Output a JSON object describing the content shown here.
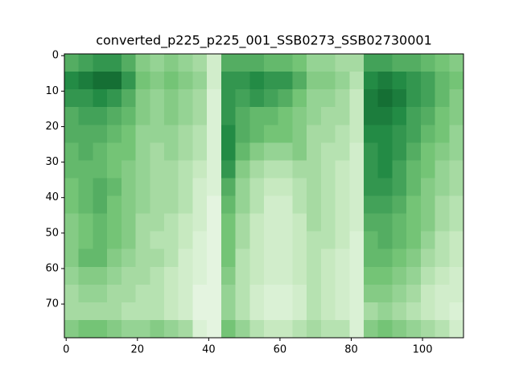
{
  "chart_data": {
    "type": "heatmap",
    "title": "converted_p225_p225_001_SSB0273_SSB02730001",
    "colormap": "Greens",
    "xlim": [
      -0.5,
      111.5
    ],
    "ylim": [
      79.5,
      -0.5
    ],
    "xticks": [
      0,
      20,
      40,
      60,
      80,
      100
    ],
    "yticks": [
      0,
      10,
      20,
      30,
      40,
      50,
      60,
      70
    ],
    "z": [
      [
        0.6,
        0.65,
        0.7,
        0.7,
        0.6,
        0.45,
        0.4,
        0.45,
        0.4,
        0.35,
        0.2,
        0.6,
        0.6,
        0.6,
        0.55,
        0.55,
        0.5,
        0.4,
        0.4,
        0.35,
        0.35,
        0.65,
        0.65,
        0.6,
        0.6,
        0.55,
        0.5,
        0.45
      ],
      [
        0.75,
        0.8,
        0.85,
        0.85,
        0.7,
        0.5,
        0.45,
        0.5,
        0.45,
        0.4,
        0.2,
        0.7,
        0.7,
        0.75,
        0.7,
        0.7,
        0.6,
        0.45,
        0.45,
        0.4,
        0.3,
        0.75,
        0.8,
        0.75,
        0.7,
        0.65,
        0.55,
        0.5
      ],
      [
        0.7,
        0.7,
        0.75,
        0.7,
        0.6,
        0.45,
        0.4,
        0.45,
        0.4,
        0.35,
        0.15,
        0.7,
        0.65,
        0.7,
        0.65,
        0.6,
        0.5,
        0.4,
        0.4,
        0.35,
        0.25,
        0.8,
        0.85,
        0.8,
        0.7,
        0.65,
        0.55,
        0.45
      ],
      [
        0.6,
        0.65,
        0.65,
        0.6,
        0.55,
        0.45,
        0.4,
        0.45,
        0.4,
        0.35,
        0.15,
        0.7,
        0.6,
        0.55,
        0.55,
        0.5,
        0.45,
        0.4,
        0.35,
        0.35,
        0.25,
        0.8,
        0.8,
        0.75,
        0.65,
        0.6,
        0.5,
        0.45
      ],
      [
        0.6,
        0.6,
        0.6,
        0.55,
        0.5,
        0.4,
        0.4,
        0.4,
        0.35,
        0.3,
        0.15,
        0.75,
        0.6,
        0.55,
        0.5,
        0.5,
        0.45,
        0.35,
        0.35,
        0.3,
        0.25,
        0.75,
        0.75,
        0.7,
        0.65,
        0.55,
        0.5,
        0.4
      ],
      [
        0.55,
        0.6,
        0.55,
        0.5,
        0.5,
        0.4,
        0.35,
        0.4,
        0.35,
        0.3,
        0.15,
        0.75,
        0.55,
        0.45,
        0.4,
        0.4,
        0.45,
        0.35,
        0.3,
        0.3,
        0.2,
        0.7,
        0.75,
        0.7,
        0.6,
        0.5,
        0.45,
        0.4
      ],
      [
        0.55,
        0.55,
        0.55,
        0.5,
        0.45,
        0.4,
        0.35,
        0.35,
        0.3,
        0.25,
        0.15,
        0.7,
        0.45,
        0.35,
        0.3,
        0.3,
        0.35,
        0.35,
        0.3,
        0.25,
        0.2,
        0.7,
        0.75,
        0.65,
        0.55,
        0.5,
        0.4,
        0.35
      ],
      [
        0.5,
        0.55,
        0.6,
        0.55,
        0.45,
        0.4,
        0.35,
        0.35,
        0.3,
        0.2,
        0.15,
        0.6,
        0.4,
        0.3,
        0.25,
        0.25,
        0.3,
        0.35,
        0.3,
        0.25,
        0.2,
        0.7,
        0.7,
        0.65,
        0.55,
        0.45,
        0.4,
        0.35
      ],
      [
        0.5,
        0.55,
        0.6,
        0.5,
        0.45,
        0.4,
        0.35,
        0.35,
        0.3,
        0.2,
        0.1,
        0.55,
        0.4,
        0.3,
        0.2,
        0.2,
        0.3,
        0.35,
        0.3,
        0.25,
        0.2,
        0.65,
        0.65,
        0.6,
        0.5,
        0.45,
        0.35,
        0.3
      ],
      [
        0.45,
        0.5,
        0.55,
        0.5,
        0.45,
        0.35,
        0.35,
        0.3,
        0.25,
        0.2,
        0.1,
        0.5,
        0.35,
        0.25,
        0.2,
        0.2,
        0.25,
        0.35,
        0.3,
        0.25,
        0.2,
        0.6,
        0.6,
        0.55,
        0.5,
        0.45,
        0.35,
        0.3
      ],
      [
        0.45,
        0.5,
        0.55,
        0.5,
        0.45,
        0.35,
        0.3,
        0.3,
        0.25,
        0.15,
        0.1,
        0.5,
        0.35,
        0.25,
        0.2,
        0.2,
        0.25,
        0.3,
        0.3,
        0.25,
        0.15,
        0.55,
        0.6,
        0.55,
        0.5,
        0.4,
        0.3,
        0.25
      ],
      [
        0.45,
        0.55,
        0.55,
        0.45,
        0.4,
        0.35,
        0.35,
        0.3,
        0.2,
        0.15,
        0.1,
        0.5,
        0.3,
        0.25,
        0.2,
        0.2,
        0.25,
        0.3,
        0.25,
        0.2,
        0.15,
        0.55,
        0.55,
        0.5,
        0.45,
        0.35,
        0.3,
        0.25
      ],
      [
        0.4,
        0.45,
        0.45,
        0.4,
        0.35,
        0.35,
        0.3,
        0.25,
        0.2,
        0.15,
        0.1,
        0.45,
        0.3,
        0.25,
        0.2,
        0.2,
        0.25,
        0.3,
        0.25,
        0.2,
        0.15,
        0.5,
        0.5,
        0.45,
        0.4,
        0.3,
        0.25,
        0.2
      ],
      [
        0.35,
        0.4,
        0.4,
        0.35,
        0.35,
        0.3,
        0.3,
        0.25,
        0.2,
        0.1,
        0.1,
        0.4,
        0.3,
        0.2,
        0.15,
        0.15,
        0.2,
        0.3,
        0.25,
        0.2,
        0.15,
        0.45,
        0.45,
        0.4,
        0.35,
        0.25,
        0.2,
        0.2
      ],
      [
        0.35,
        0.35,
        0.35,
        0.35,
        0.3,
        0.3,
        0.3,
        0.25,
        0.2,
        0.1,
        0.1,
        0.4,
        0.3,
        0.2,
        0.15,
        0.15,
        0.2,
        0.3,
        0.25,
        0.2,
        0.15,
        0.35,
        0.4,
        0.35,
        0.3,
        0.25,
        0.2,
        0.15
      ],
      [
        0.45,
        0.5,
        0.5,
        0.45,
        0.4,
        0.4,
        0.45,
        0.4,
        0.35,
        0.15,
        0.1,
        0.5,
        0.4,
        0.3,
        0.25,
        0.25,
        0.3,
        0.35,
        0.3,
        0.3,
        0.15,
        0.45,
        0.5,
        0.45,
        0.4,
        0.35,
        0.3,
        0.2
      ]
    ]
  }
}
